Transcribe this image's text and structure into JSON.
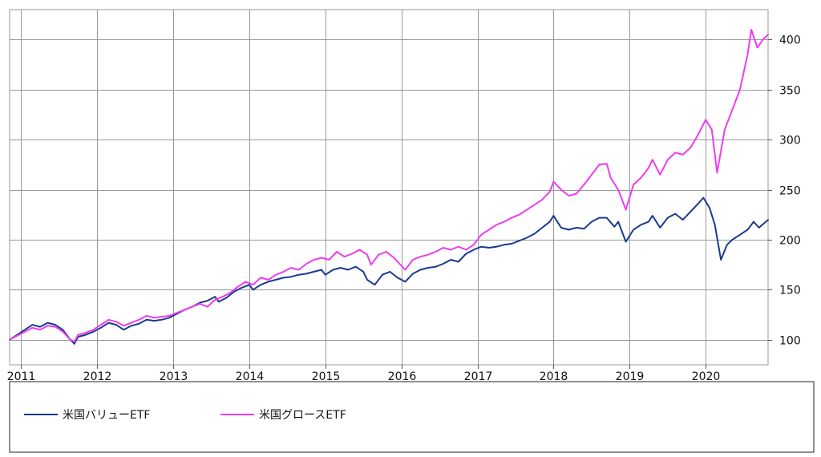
{
  "chart_data": {
    "type": "line",
    "title": "",
    "xlabel": "",
    "ylabel": "",
    "x_ticks": [
      "2011",
      "2012",
      "2013",
      "2014",
      "2015",
      "2016",
      "2017",
      "2018",
      "2019",
      "2020"
    ],
    "y_ticks": [
      100,
      150,
      200,
      250,
      300,
      350,
      400
    ],
    "xlim": [
      2010.85,
      2020.82
    ],
    "ylim": [
      75,
      430
    ],
    "grid": true,
    "legend_position": "bottom",
    "series": [
      {
        "name": "米国バリューETF",
        "color": "#1a3a8f",
        "points": [
          [
            2010.85,
            100
          ],
          [
            2010.95,
            105
          ],
          [
            2011.05,
            110
          ],
          [
            2011.15,
            115
          ],
          [
            2011.25,
            113
          ],
          [
            2011.35,
            117
          ],
          [
            2011.45,
            115
          ],
          [
            2011.55,
            110
          ],
          [
            2011.65,
            100
          ],
          [
            2011.7,
            96
          ],
          [
            2011.75,
            103
          ],
          [
            2011.85,
            105
          ],
          [
            2011.95,
            108
          ],
          [
            2012.05,
            112
          ],
          [
            2012.15,
            117
          ],
          [
            2012.25,
            115
          ],
          [
            2012.35,
            110
          ],
          [
            2012.45,
            114
          ],
          [
            2012.55,
            116
          ],
          [
            2012.65,
            120
          ],
          [
            2012.75,
            119
          ],
          [
            2012.85,
            120
          ],
          [
            2012.95,
            122
          ],
          [
            2013.05,
            126
          ],
          [
            2013.15,
            130
          ],
          [
            2013.25,
            133
          ],
          [
            2013.35,
            137
          ],
          [
            2013.45,
            139
          ],
          [
            2013.55,
            143
          ],
          [
            2013.6,
            138
          ],
          [
            2013.7,
            142
          ],
          [
            2013.8,
            148
          ],
          [
            2013.9,
            152
          ],
          [
            2014.0,
            155
          ],
          [
            2014.05,
            150
          ],
          [
            2014.15,
            155
          ],
          [
            2014.25,
            158
          ],
          [
            2014.35,
            160
          ],
          [
            2014.45,
            162
          ],
          [
            2014.55,
            163
          ],
          [
            2014.65,
            165
          ],
          [
            2014.75,
            166
          ],
          [
            2014.85,
            168
          ],
          [
            2014.95,
            170
          ],
          [
            2015.0,
            165
          ],
          [
            2015.1,
            170
          ],
          [
            2015.2,
            172
          ],
          [
            2015.3,
            170
          ],
          [
            2015.4,
            173
          ],
          [
            2015.5,
            168
          ],
          [
            2015.55,
            160
          ],
          [
            2015.65,
            155
          ],
          [
            2015.75,
            165
          ],
          [
            2015.85,
            168
          ],
          [
            2015.95,
            162
          ],
          [
            2016.05,
            158
          ],
          [
            2016.15,
            166
          ],
          [
            2016.25,
            170
          ],
          [
            2016.35,
            172
          ],
          [
            2016.45,
            173
          ],
          [
            2016.55,
            176
          ],
          [
            2016.65,
            180
          ],
          [
            2016.75,
            178
          ],
          [
            2016.85,
            186
          ],
          [
            2016.95,
            190
          ],
          [
            2017.05,
            193
          ],
          [
            2017.15,
            192
          ],
          [
            2017.25,
            193
          ],
          [
            2017.35,
            195
          ],
          [
            2017.45,
            196
          ],
          [
            2017.55,
            199
          ],
          [
            2017.65,
            202
          ],
          [
            2017.75,
            206
          ],
          [
            2017.85,
            212
          ],
          [
            2017.95,
            218
          ],
          [
            2018.0,
            224
          ],
          [
            2018.1,
            212
          ],
          [
            2018.2,
            210
          ],
          [
            2018.3,
            212
          ],
          [
            2018.4,
            211
          ],
          [
            2018.5,
            218
          ],
          [
            2018.6,
            222
          ],
          [
            2018.7,
            222
          ],
          [
            2018.8,
            213
          ],
          [
            2018.85,
            218
          ],
          [
            2018.95,
            198
          ],
          [
            2019.05,
            210
          ],
          [
            2019.15,
            215
          ],
          [
            2019.25,
            218
          ],
          [
            2019.3,
            224
          ],
          [
            2019.4,
            212
          ],
          [
            2019.5,
            222
          ],
          [
            2019.6,
            226
          ],
          [
            2019.7,
            220
          ],
          [
            2019.8,
            228
          ],
          [
            2019.9,
            236
          ],
          [
            2019.97,
            242
          ],
          [
            2020.05,
            232
          ],
          [
            2020.12,
            215
          ],
          [
            2020.2,
            180
          ],
          [
            2020.28,
            195
          ],
          [
            2020.35,
            200
          ],
          [
            2020.45,
            205
          ],
          [
            2020.55,
            210
          ],
          [
            2020.63,
            218
          ],
          [
            2020.7,
            212
          ],
          [
            2020.82,
            220
          ]
        ]
      },
      {
        "name": "米国グロースETF",
        "color": "#ee3cee",
        "points": [
          [
            2010.85,
            100
          ],
          [
            2010.95,
            104
          ],
          [
            2011.05,
            108
          ],
          [
            2011.15,
            112
          ],
          [
            2011.25,
            110
          ],
          [
            2011.35,
            114
          ],
          [
            2011.45,
            113
          ],
          [
            2011.55,
            108
          ],
          [
            2011.65,
            100
          ],
          [
            2011.7,
            98
          ],
          [
            2011.75,
            105
          ],
          [
            2011.85,
            107
          ],
          [
            2011.95,
            110
          ],
          [
            2012.05,
            115
          ],
          [
            2012.15,
            120
          ],
          [
            2012.25,
            118
          ],
          [
            2012.35,
            114
          ],
          [
            2012.45,
            117
          ],
          [
            2012.55,
            120
          ],
          [
            2012.65,
            124
          ],
          [
            2012.75,
            122
          ],
          [
            2012.85,
            123
          ],
          [
            2012.95,
            124
          ],
          [
            2013.05,
            127
          ],
          [
            2013.15,
            130
          ],
          [
            2013.25,
            133
          ],
          [
            2013.35,
            136
          ],
          [
            2013.45,
            133
          ],
          [
            2013.55,
            140
          ],
          [
            2013.65,
            143
          ],
          [
            2013.75,
            147
          ],
          [
            2013.85,
            153
          ],
          [
            2013.95,
            158
          ],
          [
            2014.05,
            155
          ],
          [
            2014.15,
            162
          ],
          [
            2014.25,
            160
          ],
          [
            2014.35,
            165
          ],
          [
            2014.45,
            168
          ],
          [
            2014.55,
            172
          ],
          [
            2014.65,
            170
          ],
          [
            2014.75,
            176
          ],
          [
            2014.85,
            180
          ],
          [
            2014.95,
            182
          ],
          [
            2015.05,
            180
          ],
          [
            2015.15,
            188
          ],
          [
            2015.25,
            183
          ],
          [
            2015.35,
            186
          ],
          [
            2015.45,
            190
          ],
          [
            2015.55,
            185
          ],
          [
            2015.6,
            175
          ],
          [
            2015.7,
            185
          ],
          [
            2015.8,
            188
          ],
          [
            2015.9,
            182
          ],
          [
            2016.05,
            170
          ],
          [
            2016.15,
            180
          ],
          [
            2016.25,
            183
          ],
          [
            2016.35,
            185
          ],
          [
            2016.45,
            188
          ],
          [
            2016.55,
            192
          ],
          [
            2016.65,
            190
          ],
          [
            2016.75,
            193
          ],
          [
            2016.85,
            190
          ],
          [
            2016.95,
            195
          ],
          [
            2017.05,
            205
          ],
          [
            2017.15,
            210
          ],
          [
            2017.25,
            215
          ],
          [
            2017.35,
            218
          ],
          [
            2017.45,
            222
          ],
          [
            2017.55,
            225
          ],
          [
            2017.65,
            230
          ],
          [
            2017.75,
            235
          ],
          [
            2017.85,
            240
          ],
          [
            2017.95,
            248
          ],
          [
            2018.0,
            258
          ],
          [
            2018.1,
            250
          ],
          [
            2018.2,
            244
          ],
          [
            2018.3,
            246
          ],
          [
            2018.4,
            255
          ],
          [
            2018.5,
            265
          ],
          [
            2018.6,
            275
          ],
          [
            2018.7,
            276
          ],
          [
            2018.75,
            262
          ],
          [
            2018.85,
            250
          ],
          [
            2018.95,
            230
          ],
          [
            2019.05,
            255
          ],
          [
            2019.15,
            262
          ],
          [
            2019.25,
            272
          ],
          [
            2019.3,
            280
          ],
          [
            2019.4,
            265
          ],
          [
            2019.5,
            280
          ],
          [
            2019.6,
            287
          ],
          [
            2019.7,
            285
          ],
          [
            2019.8,
            292
          ],
          [
            2019.9,
            305
          ],
          [
            2020.0,
            320
          ],
          [
            2020.08,
            310
          ],
          [
            2020.15,
            267
          ],
          [
            2020.25,
            310
          ],
          [
            2020.35,
            330
          ],
          [
            2020.45,
            350
          ],
          [
            2020.55,
            385
          ],
          [
            2020.6,
            410
          ],
          [
            2020.68,
            392
          ],
          [
            2020.75,
            400
          ],
          [
            2020.82,
            405
          ]
        ]
      }
    ]
  }
}
